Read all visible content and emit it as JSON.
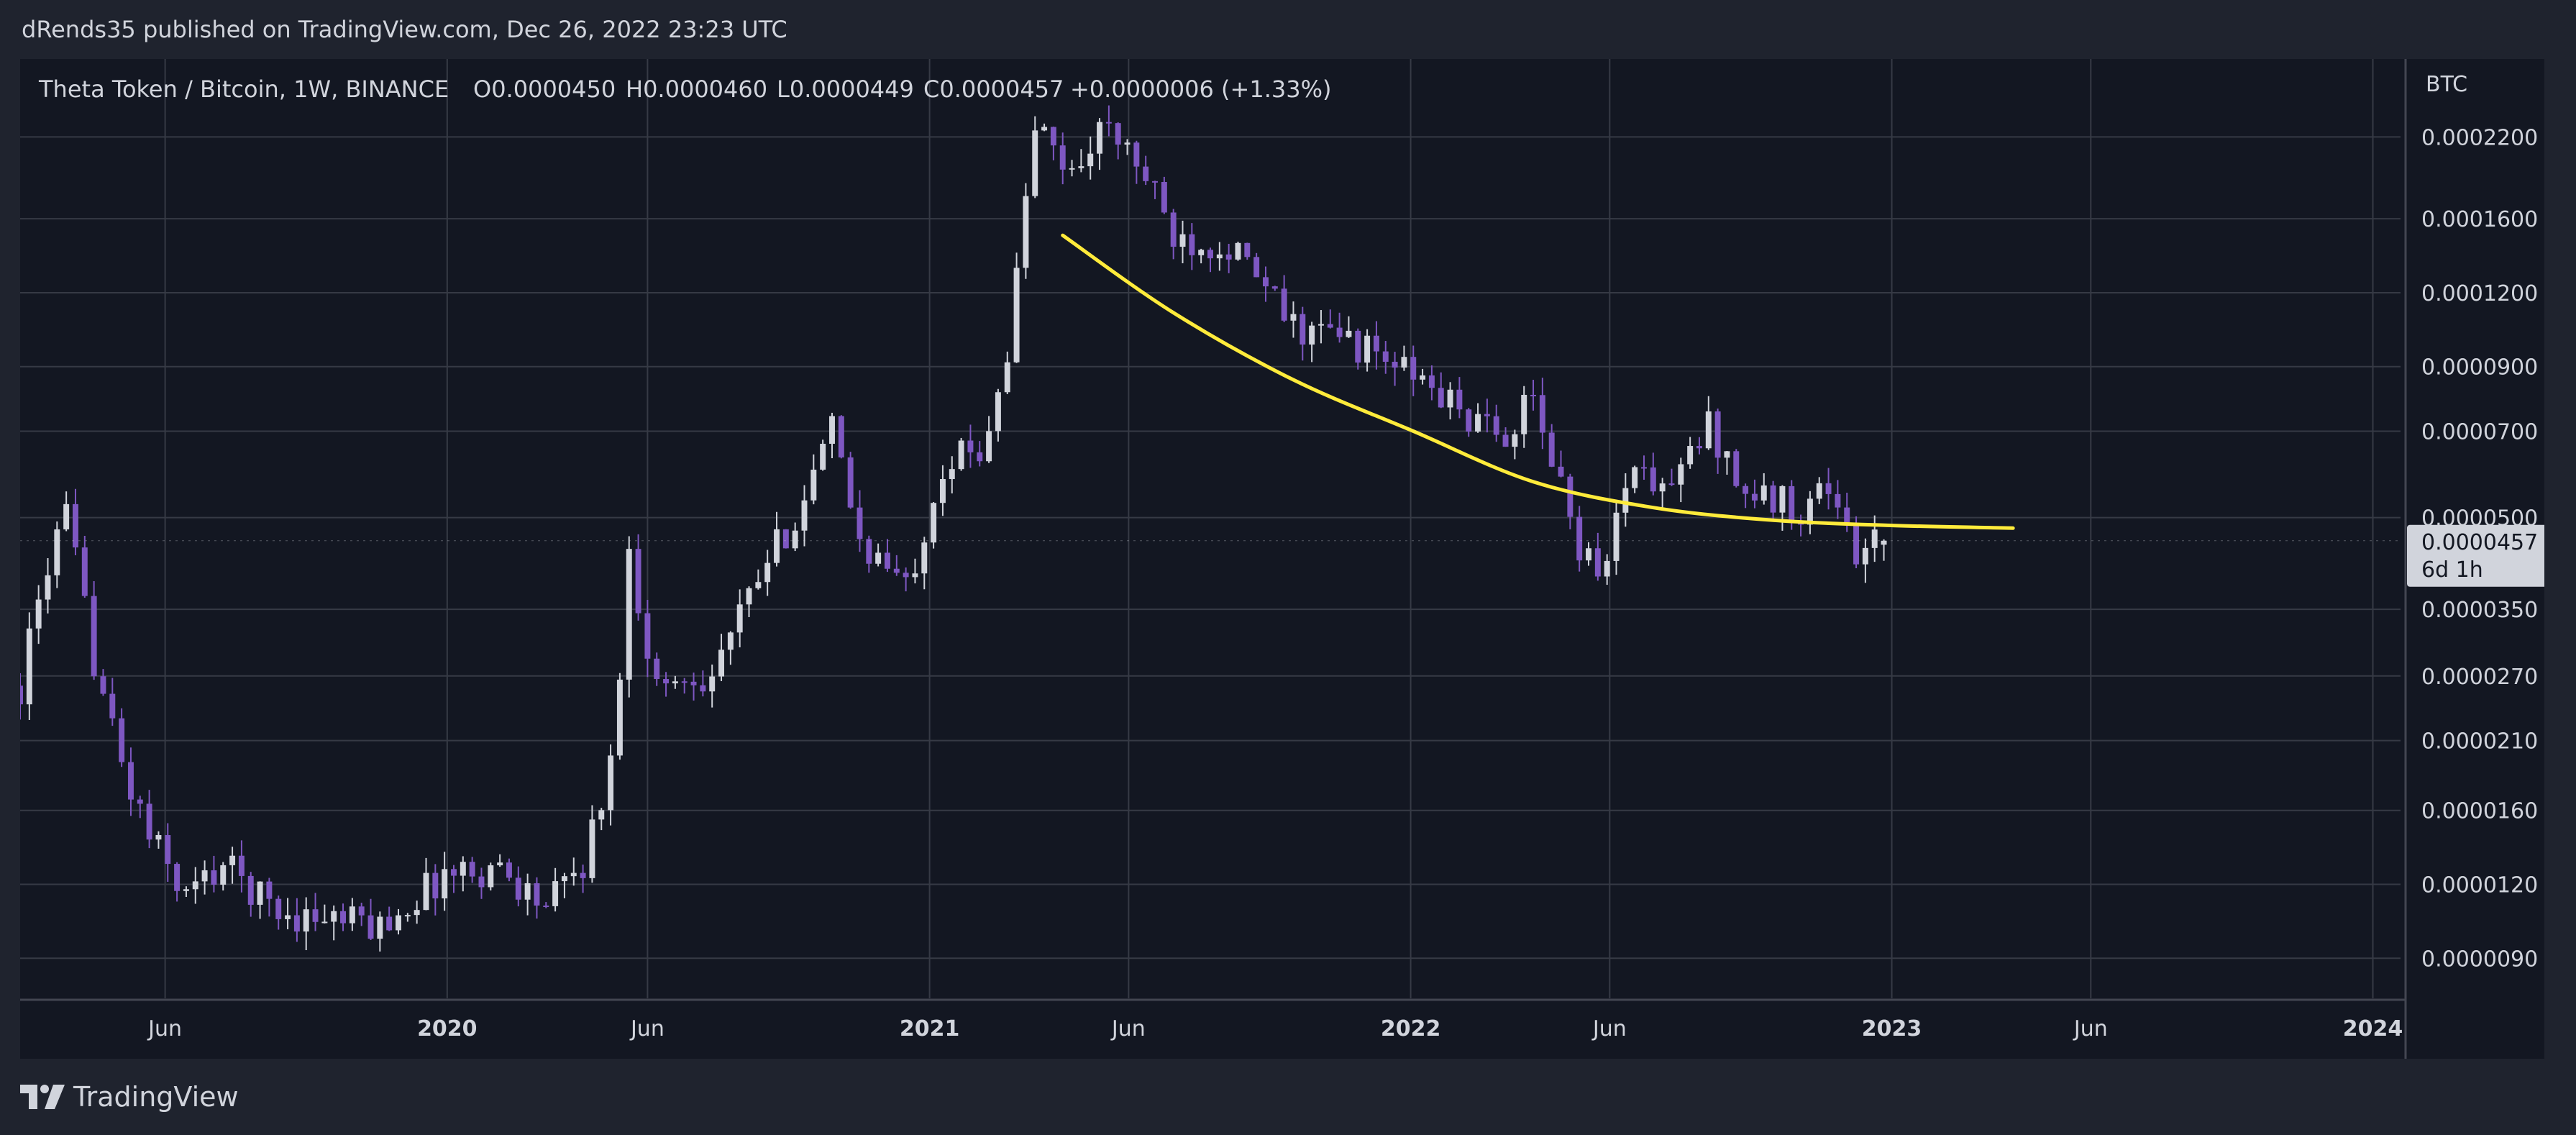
{
  "header": {
    "published_by": "dRends35 published on TradingView.com, Dec 26, 2022 23:23 UTC"
  },
  "legend": {
    "symbol": "Theta Token / Bitcoin, 1W, BINANCE",
    "open": "O0.0000450",
    "high": "H0.0000460",
    "low": "L0.0000449",
    "close": "C0.0000457",
    "change": "+0.0000006 (+1.33%)"
  },
  "price_axis": {
    "currency": "BTC",
    "ticks": [
      "0.0002200",
      "0.0001600",
      "0.0001200",
      "0.0000900",
      "0.0000700",
      "0.0000500",
      "0.0000350",
      "0.0000270",
      "0.0000210",
      "0.0000160",
      "0.0000120",
      "0.0000090"
    ],
    "last_price_label": "0.0000457",
    "countdown_label": "6d 1h"
  },
  "time_axis": {
    "labels": [
      {
        "text": "Jun",
        "bold": false
      },
      {
        "text": "2020",
        "bold": true
      },
      {
        "text": "Jun",
        "bold": false
      },
      {
        "text": "2021",
        "bold": true
      },
      {
        "text": "Jun",
        "bold": false
      },
      {
        "text": "2022",
        "bold": true
      },
      {
        "text": "Jun",
        "bold": false
      },
      {
        "text": "2023",
        "bold": true
      },
      {
        "text": "Jun",
        "bold": false
      },
      {
        "text": "2024",
        "bold": true
      }
    ]
  },
  "footer": {
    "brand": "TradingView",
    "logo_icon": "tradingview-logo-icon"
  },
  "colors": {
    "background": "#131722",
    "frame": "#1f232e",
    "grid": "#363a45",
    "up_candle": "#d1d4dc",
    "down_candle": "#7e57c2",
    "trend_curve": "#ffeb3b",
    "text": "#d1d4dc"
  },
  "chart_data": {
    "type": "candlestick",
    "title": "Theta Token / Bitcoin, 1W, BINANCE",
    "ylabel": "BTC",
    "y_scale": "log",
    "ylim": [
      7.7e-06,
      0.000298
    ],
    "x_range": [
      "2019-02-11",
      "2024-01-22"
    ],
    "grid": true,
    "last_close": 4.57e-05,
    "control_points": [
      [
        "2019-02-11",
        2.6e-05
      ],
      [
        "2019-03-04",
        4.2e-05
      ],
      [
        "2019-03-18",
        5e-05
      ],
      [
        "2019-04-08",
        2.9e-05
      ],
      [
        "2019-04-29",
        1.9e-05
      ],
      [
        "2019-05-20",
        1.45e-05
      ],
      [
        "2019-06-17",
        1.15e-05
      ],
      [
        "2019-07-15",
        1.3e-05
      ],
      [
        "2019-08-26",
        1.08e-05
      ],
      [
        "2019-11-11",
        1.02e-05
      ],
      [
        "2019-12-30",
        1.25e-05
      ],
      [
        "2020-02-10",
        1.28e-05
      ],
      [
        "2020-03-16",
        1.1e-05
      ],
      [
        "2020-04-13",
        1.3e-05
      ],
      [
        "2020-05-04",
        1.9e-05
      ],
      [
        "2020-05-18",
        4.3e-05
      ],
      [
        "2020-06-08",
        2.6e-05
      ],
      [
        "2020-07-20",
        2.75e-05
      ],
      [
        "2020-08-31",
        4.2e-05
      ],
      [
        "2020-09-28",
        5.4e-05
      ],
      [
        "2020-10-19",
        7e-05
      ],
      [
        "2020-11-09",
        4.6e-05
      ],
      [
        "2020-12-14",
        3.8e-05
      ],
      [
        "2021-01-11",
        6.2e-05
      ],
      [
        "2021-02-08",
        6.5e-05
      ],
      [
        "2021-03-01",
        9.5e-05
      ],
      [
        "2021-03-22",
        0.00023
      ],
      [
        "2021-04-19",
        0.00019
      ],
      [
        "2021-05-10",
        0.00023
      ],
      [
        "2021-06-07",
        0.0002
      ],
      [
        "2021-07-05",
        0.00015
      ],
      [
        "2021-08-16",
        0.000145
      ],
      [
        "2021-10-04",
        0.000105
      ],
      [
        "2021-11-15",
        0.0001
      ],
      [
        "2022-01-10",
        8.5e-05
      ],
      [
        "2022-03-07",
        6.8e-05
      ],
      [
        "2022-04-04",
        7.8e-05
      ],
      [
        "2022-05-09",
        4.5e-05
      ],
      [
        "2022-05-30",
        4.1e-05
      ],
      [
        "2022-06-13",
        6e-05
      ],
      [
        "2022-07-18",
        5.6e-05
      ],
      [
        "2022-08-15",
        7.2e-05
      ],
      [
        "2022-09-12",
        5.5e-05
      ],
      [
        "2022-10-24",
        5.2e-05
      ],
      [
        "2022-11-14",
        5.7e-05
      ],
      [
        "2022-12-05",
        4.3e-05
      ],
      [
        "2022-12-26",
        4.57e-05
      ]
    ],
    "trend_curve": {
      "color": "#ffeb3b",
      "points": [
        [
          "2021-04-12",
          0.00015
        ],
        [
          "2021-07-05",
          0.000111
        ],
        [
          "2021-10-04",
          8.55e-05
        ],
        [
          "2022-01-03",
          7e-05
        ],
        [
          "2022-04-04",
          5.75e-05
        ],
        [
          "2022-07-04",
          5.2e-05
        ],
        [
          "2022-10-03",
          4.95e-05
        ],
        [
          "2023-01-02",
          4.85e-05
        ],
        [
          "2023-04-03",
          4.8e-05
        ]
      ]
    }
  }
}
